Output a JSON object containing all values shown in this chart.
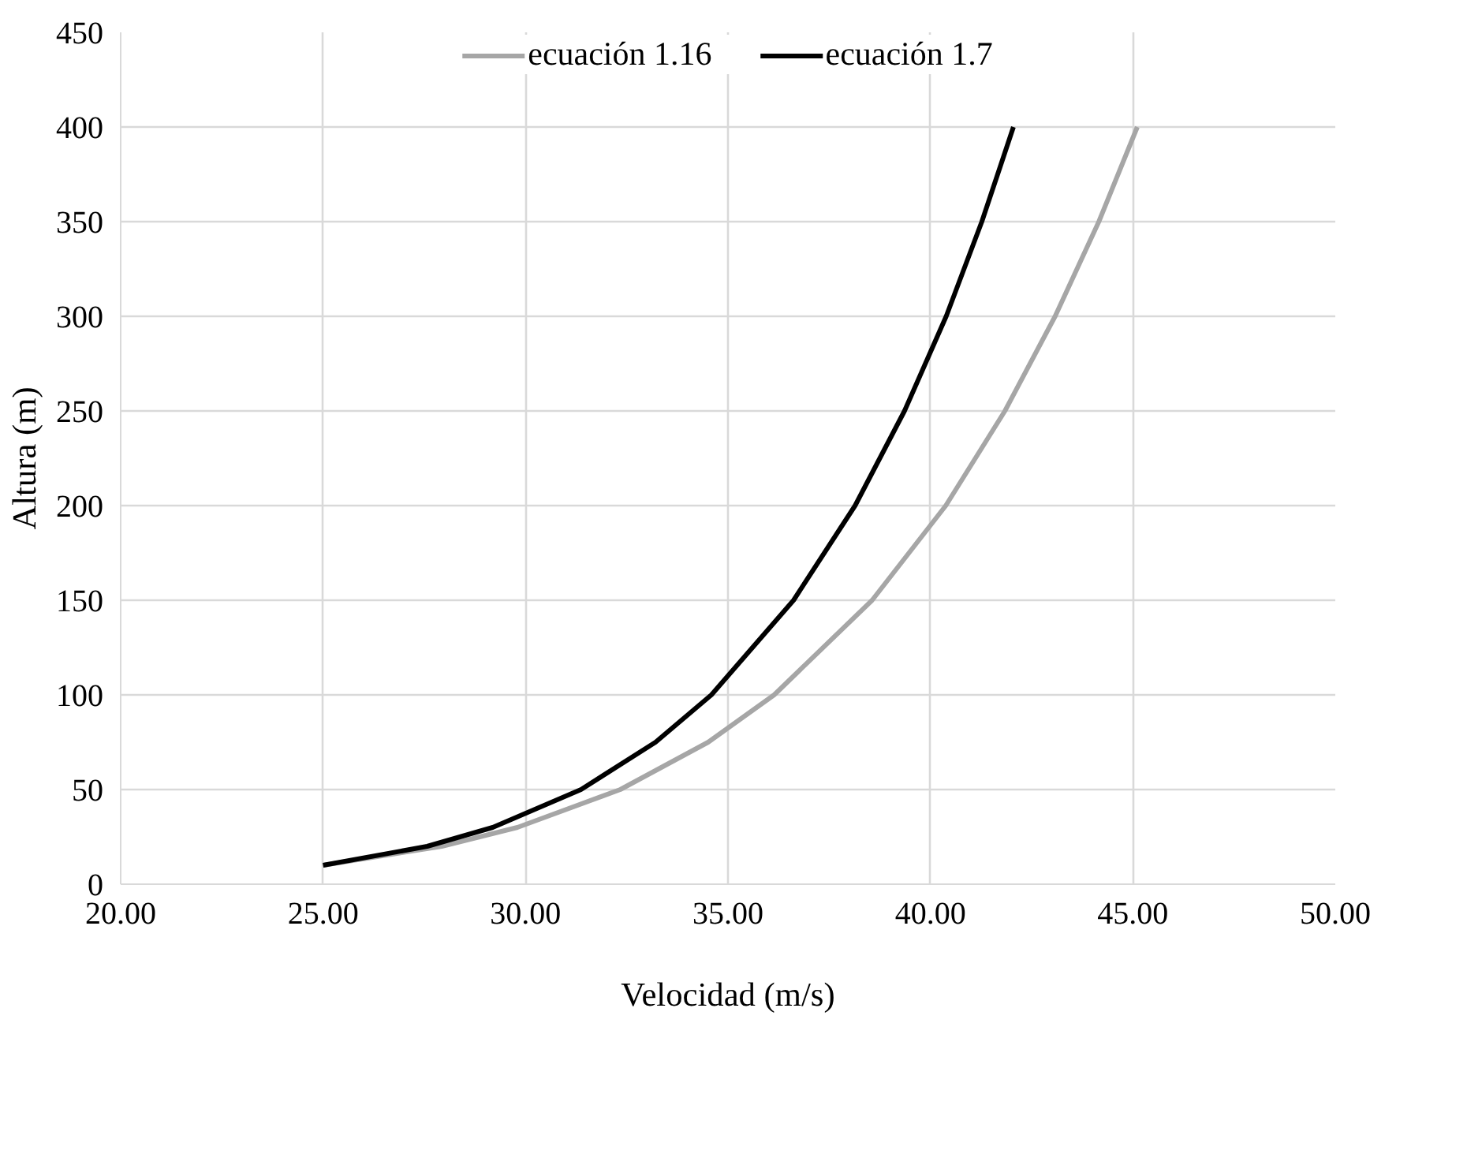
{
  "chart_data": {
    "type": "line",
    "xlabel": "Velocidad (m/s)",
    "ylabel": "Altura (m)",
    "xlim": [
      20,
      50
    ],
    "ylim": [
      0,
      450
    ],
    "xticks": [
      {
        "value": 20,
        "label": "20.00"
      },
      {
        "value": 25,
        "label": "25.00"
      },
      {
        "value": 30,
        "label": "30.00"
      },
      {
        "value": 35,
        "label": "35.00"
      },
      {
        "value": 40,
        "label": "40.00"
      },
      {
        "value": 45,
        "label": "45.00"
      },
      {
        "value": 50,
        "label": "50.00"
      }
    ],
    "yticks": [
      0,
      50,
      100,
      150,
      200,
      250,
      300,
      350,
      400,
      450
    ],
    "grid": true,
    "legend": "top",
    "marker": "none",
    "line_style": "solid",
    "series": [
      {
        "name": "ecuación 1.16",
        "color": "#a6a6a6",
        "x": [
          25.0,
          27.93,
          29.8,
          32.34,
          34.51,
          36.14,
          38.56,
          40.38,
          41.84,
          43.08,
          44.16,
          45.11
        ],
        "values": [
          10,
          20,
          30,
          50,
          75,
          100,
          150,
          200,
          250,
          300,
          350,
          400
        ]
      },
      {
        "name": "ecuación 1.7",
        "color": "#000000",
        "x": [
          25.0,
          27.57,
          29.19,
          31.37,
          33.21,
          34.59,
          36.62,
          38.14,
          39.36,
          40.39,
          41.27,
          42.05
        ],
        "values": [
          10,
          20,
          30,
          50,
          75,
          100,
          150,
          200,
          250,
          300,
          350,
          400
        ]
      }
    ]
  }
}
